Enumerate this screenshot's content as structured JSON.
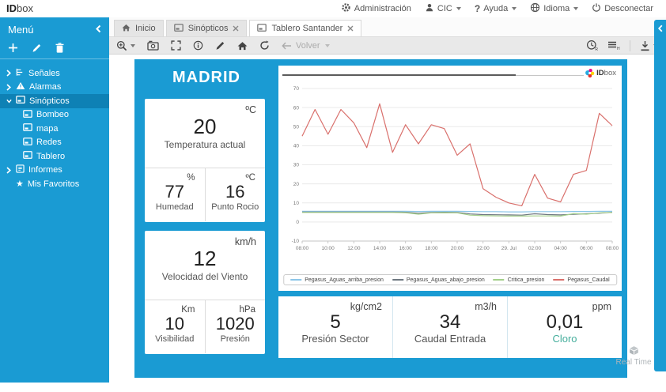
{
  "app": {
    "logo_bold": "ID",
    "logo_light": "box"
  },
  "topbar": {
    "items": [
      {
        "label": "Administración"
      },
      {
        "label": "CIC"
      },
      {
        "label": "Ayuda",
        "glyph": "?"
      },
      {
        "label": "Idioma"
      },
      {
        "label": "Desconectar"
      }
    ]
  },
  "sidebar": {
    "title": "Menú",
    "tree": [
      {
        "label": "Señales"
      },
      {
        "label": "Alarmas"
      },
      {
        "label": "Sinópticos"
      },
      {
        "label": "Bombeo"
      },
      {
        "label": "mapa"
      },
      {
        "label": "Redes"
      },
      {
        "label": "Tablero"
      },
      {
        "label": "Informes"
      },
      {
        "label": "Mis Favoritos",
        "icon_glyph": "★"
      }
    ]
  },
  "tabs": [
    {
      "label": "Inicio"
    },
    {
      "label": "Sinópticos"
    },
    {
      "label": "Tablero Santander"
    }
  ],
  "toolbar": {
    "back_label": "Volver"
  },
  "dashboard": {
    "city": "MADRID",
    "weather_cards": [
      {
        "main": {
          "unit": "ºC",
          "value": "20",
          "label": "Temperatura actual"
        },
        "sub": [
          {
            "unit": "%",
            "value": "77",
            "label": "Humedad"
          },
          {
            "unit": "ºC",
            "value": "16",
            "label": "Punto Rocio"
          }
        ]
      },
      {
        "main": {
          "unit": "km/h",
          "value": "12",
          "label": "Velocidad del Viento"
        },
        "sub": [
          {
            "unit": "Km",
            "value": "10",
            "label": "Visibilidad"
          },
          {
            "unit": "hPa",
            "value": "1020",
            "label": "Presión"
          }
        ]
      }
    ],
    "metrics": [
      {
        "unit": "kg/cm2",
        "value": "5",
        "label": "Presión Sector"
      },
      {
        "unit": "m3/h",
        "value": "34",
        "label": "Caudal Entrada"
      },
      {
        "unit": "ppm",
        "value": "0,01",
        "label": "Cloro"
      }
    ]
  },
  "chart_logo": {
    "bold": "ID",
    "light": "box"
  },
  "chart_data": {
    "type": "line",
    "x_labels": [
      "08:00",
      "10:00",
      "12:00",
      "14:00",
      "16:00",
      "18:00",
      "20:00",
      "22:00",
      "29. Jul",
      "02:00",
      "04:00",
      "06:00",
      "08:00"
    ],
    "ylim": [
      -10,
      70
    ],
    "y_ticks": [
      70,
      60,
      50,
      40,
      30,
      20,
      10,
      0,
      -10
    ],
    "grid": true,
    "legend_position": "bottom",
    "series": [
      {
        "name": "Pegasus_Aguas_arriba_presion",
        "color": "#8CC6E8",
        "values": [
          5.6,
          5.6,
          5.6,
          5.6,
          5.6,
          5.6,
          5.6,
          5.6,
          5.6,
          5.5,
          5.6,
          5.6,
          5.6,
          5.5,
          5.4,
          5.4,
          5.3,
          5.3,
          5.4,
          5.4,
          5.4,
          5.5,
          5.5,
          5.6,
          5.6
        ]
      },
      {
        "name": "Pegasus_Aguas_abajo_presion",
        "color": "#6E7880",
        "values": [
          5.2,
          5.2,
          5.2,
          5.2,
          5.2,
          5.2,
          5.2,
          5.2,
          5.1,
          4.6,
          5.0,
          5.1,
          5.0,
          4.2,
          3.9,
          3.8,
          3.7,
          3.6,
          4.3,
          3.9,
          3.7,
          4.0,
          4.3,
          4.6,
          5.1
        ]
      },
      {
        "name": "Critica_presion",
        "color": "#A3CF8A",
        "values": [
          5.0,
          5.0,
          5.0,
          5.0,
          5.0,
          5.0,
          5.0,
          5.0,
          4.9,
          4.1,
          4.8,
          4.9,
          4.8,
          3.6,
          3.3,
          3.2,
          3.1,
          3.1,
          3.2,
          3.2,
          3.1,
          4.4,
          4.1,
          4.8,
          5.0
        ]
      },
      {
        "name": "Pegasus_Caudal",
        "color": "#D9706C",
        "values": [
          45,
          59,
          46,
          59,
          52,
          39,
          62,
          36.5,
          51,
          41,
          51,
          49,
          35,
          41,
          17.5,
          13,
          10,
          8.5,
          25,
          12.5,
          10.5,
          25,
          27,
          57,
          50.5
        ]
      }
    ]
  },
  "watermark": {
    "label": "Real Time"
  },
  "colors": {
    "accent": "#1A9BD3",
    "selected": "#0E81B5",
    "cloro_label": "#45AE9C"
  }
}
